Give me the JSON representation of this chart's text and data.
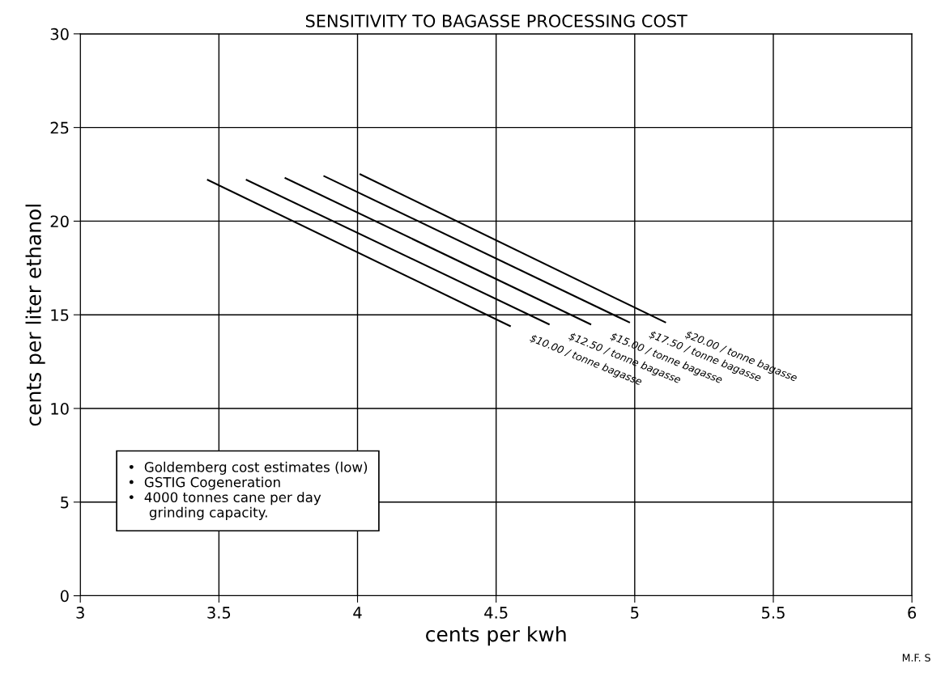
{
  "chart_data": {
    "type": "line",
    "title": "SENSITIVITY TO BAGASSE PROCESSING COST",
    "xlabel": "cents per kwh",
    "ylabel": "cents per liter ethanol",
    "series": [
      {
        "name": "$10.00 / tonne bagasse",
        "color": "#000000",
        "x": [
          3.46,
          4.55
        ],
        "values": [
          22.2,
          14.4
        ]
      },
      {
        "name": "$12.50 / tonne bagasse",
        "color": "#000000",
        "x": [
          3.6,
          4.69
        ],
        "values": [
          22.2,
          14.5
        ]
      },
      {
        "name": "$15.00 / tonne bagasse",
        "color": "#000000",
        "x": [
          3.74,
          4.84
        ],
        "values": [
          22.3,
          14.5
        ]
      },
      {
        "name": "$17.50 / tonne bagasse",
        "color": "#000000",
        "x": [
          3.88,
          4.98
        ],
        "values": [
          22.4,
          14.6
        ]
      },
      {
        "name": "$20.00 / tonne bagasse",
        "color": "#000000",
        "x": [
          4.01,
          5.11
        ],
        "values": [
          22.5,
          14.6
        ]
      }
    ],
    "annotations": [
      "•  Goldemberg cost estimates (low)\n•  GSTIG Cogeneration\n•  4000 tonnes cane per day\n     grinding capacity.",
      "M.F. S"
    ],
    "xlim": [
      3,
      6
    ],
    "xticks": [
      3,
      3.5,
      4,
      4.5,
      5,
      5.5,
      6
    ],
    "ylim": [
      0,
      30
    ],
    "yticks": [
      0,
      5,
      10,
      15,
      20,
      25,
      30
    ],
    "grid": true,
    "legend": false,
    "marker": "none",
    "line_style": "solid"
  }
}
